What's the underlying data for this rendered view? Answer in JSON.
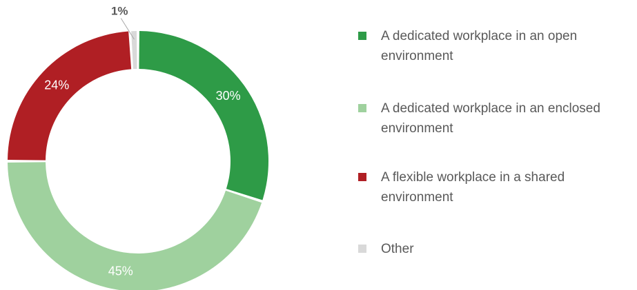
{
  "chart_data": {
    "type": "pie",
    "variant": "donut",
    "title": "",
    "legend_position": "right",
    "slices": [
      {
        "label": "A dedicated workplace in an open environment",
        "value": 30,
        "display": "30%",
        "color": "#2e9b47"
      },
      {
        "label": "A dedicated workplace in an enclosed environment",
        "value": 45,
        "display": "45%",
        "color": "#9fd19e"
      },
      {
        "label": "A flexible workplace in a shared environment",
        "value": 24,
        "display": "24%",
        "color": "#b01f24"
      },
      {
        "label": "Other",
        "value": 1,
        "display": "1%",
        "color": "#d9d9d9"
      }
    ]
  }
}
